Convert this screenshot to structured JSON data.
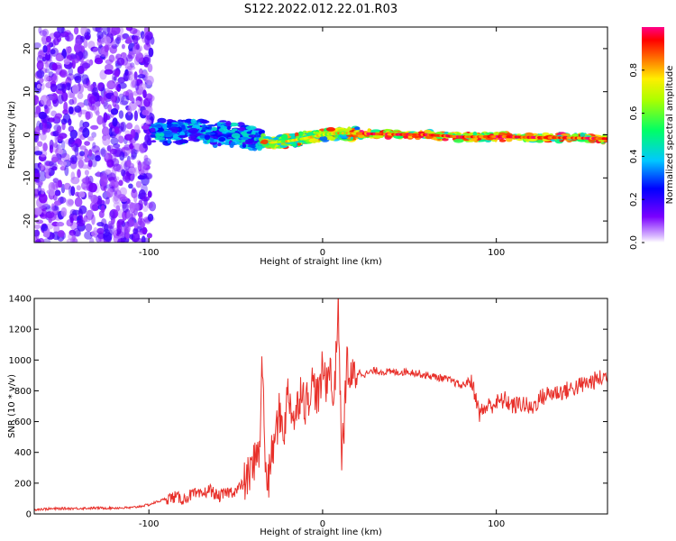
{
  "figure": {
    "title": "S122.2022.012.22.01.R03"
  },
  "chart_data": [
    {
      "type": "heatmap",
      "panel": "spectrogram",
      "xlabel": "Height of straight line (km)",
      "ylabel": "Frequency (Hz)",
      "xlim": [
        -166,
        164
      ],
      "ylim": [
        -25,
        25
      ],
      "xticks": [
        -100,
        0,
        100
      ],
      "yticks": [
        -20,
        -10,
        0,
        10,
        20
      ],
      "grid": false,
      "colorbar": {
        "label": "Normalized spectral amplitude",
        "range": [
          0,
          1
        ],
        "ticks": [
          0.0,
          0.2,
          0.4,
          0.6,
          0.8
        ],
        "tick_labels": [
          "0.0",
          "0.2",
          "0.4",
          "0.6",
          "0.8"
        ]
      },
      "regions": [
        {
          "x_range": [
            -166,
            -98
          ],
          "y_range": [
            -25,
            25
          ],
          "amplitude_range": [
            0.05,
            0.2
          ],
          "description": "noise"
        },
        {
          "x_range": [
            -98,
            -35
          ],
          "y_range": [
            -3,
            3
          ],
          "amplitude_range": [
            0.15,
            0.45
          ]
        },
        {
          "x_range": [
            -35,
            20
          ],
          "y_range": [
            -2,
            1
          ],
          "amplitude_range": [
            0.3,
            0.95
          ]
        },
        {
          "x_range": [
            20,
            164
          ],
          "y_range": [
            -1,
            1
          ],
          "amplitude_range": [
            0.4,
            1.0
          ]
        }
      ],
      "ridge": {
        "x": [
          -98,
          -80,
          -60,
          -40,
          -30,
          -20,
          -10,
          0,
          10,
          20,
          40,
          60,
          80,
          100,
          120,
          140,
          164
        ],
        "y": [
          0.5,
          0.8,
          0.5,
          -1.0,
          -1.8,
          -1.5,
          -0.8,
          0.0,
          0.4,
          0.3,
          0.1,
          0.0,
          -0.5,
          -0.4,
          -0.6,
          -0.7,
          -0.9
        ]
      }
    },
    {
      "type": "line",
      "panel": "snr",
      "xlabel": "Height of straight line (km)",
      "ylabel": "SNR (10 * v/v)",
      "xlim": [
        -166,
        164
      ],
      "ylim": [
        0,
        1400
      ],
      "xticks": [
        -100,
        0,
        100
      ],
      "yticks": [
        0,
        200,
        400,
        600,
        800,
        1000,
        1200,
        1400
      ],
      "grid": false,
      "color": "#e8302a",
      "x": [
        -166,
        -150,
        -130,
        -110,
        -100,
        -95,
        -90,
        -85,
        -80,
        -75,
        -70,
        -65,
        -60,
        -55,
        -50,
        -45,
        -40,
        -38,
        -36,
        -35,
        -33,
        -31,
        -30,
        -28,
        -25,
        -22,
        -20,
        -16,
        -12,
        -10,
        -6,
        -2,
        0,
        2,
        4,
        6,
        8,
        9,
        10,
        11,
        12,
        14,
        16,
        18,
        20,
        25,
        30,
        40,
        50,
        60,
        70,
        75,
        80,
        85,
        88,
        90,
        95,
        100,
        105,
        110,
        115,
        120,
        125,
        130,
        140,
        150,
        160,
        164
      ],
      "y": [
        30,
        35,
        38,
        40,
        60,
        80,
        100,
        110,
        95,
        130,
        120,
        160,
        110,
        140,
        150,
        200,
        300,
        450,
        350,
        1110,
        300,
        200,
        350,
        450,
        650,
        550,
        800,
        600,
        850,
        700,
        850,
        750,
        950,
        850,
        1000,
        700,
        1050,
        1450,
        800,
        400,
        500,
        1000,
        850,
        900,
        920,
        910,
        930,
        920,
        925,
        900,
        880,
        860,
        830,
        870,
        780,
        650,
        700,
        720,
        740,
        700,
        720,
        680,
        750,
        780,
        800,
        840,
        880,
        900
      ]
    }
  ]
}
